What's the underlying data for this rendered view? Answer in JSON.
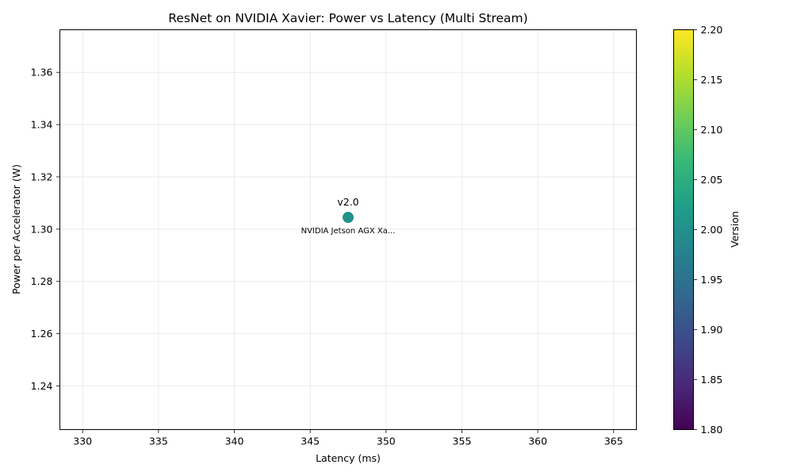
{
  "chart_data": {
    "type": "scatter",
    "title": "ResNet on NVIDIA Xavier: Power vs Latency (Multi Stream)",
    "xlabel": "Latency (ms)",
    "ylabel": "Power per Accelerator (W)",
    "xlim": [
      328.5,
      366.5
    ],
    "ylim": [
      1.2233,
      1.3763
    ],
    "x_ticks": [
      330,
      335,
      340,
      345,
      350,
      355,
      360,
      365
    ],
    "y_ticks": [
      1.24,
      1.26,
      1.28,
      1.3,
      1.32,
      1.34,
      1.36
    ],
    "grid": true,
    "points": [
      {
        "x": 347.5,
        "y": 1.3045,
        "version": 2.0,
        "top_label": "v2.0",
        "bottom_label": "NVIDIA Jetson AGX Xa...",
        "color": "#21918c"
      }
    ],
    "colorbar": {
      "label": "Version",
      "min": 1.8,
      "max": 2.2,
      "ticks": [
        "1.80",
        "1.85",
        "1.90",
        "1.95",
        "2.00",
        "2.05",
        "2.10",
        "2.15",
        "2.20"
      ],
      "colormap": "viridis",
      "stops": [
        "#440154",
        "#482878",
        "#3e4989",
        "#31688e",
        "#26828e",
        "#1f9e89",
        "#35b779",
        "#6ece58",
        "#b5de2b",
        "#fde725"
      ]
    }
  }
}
